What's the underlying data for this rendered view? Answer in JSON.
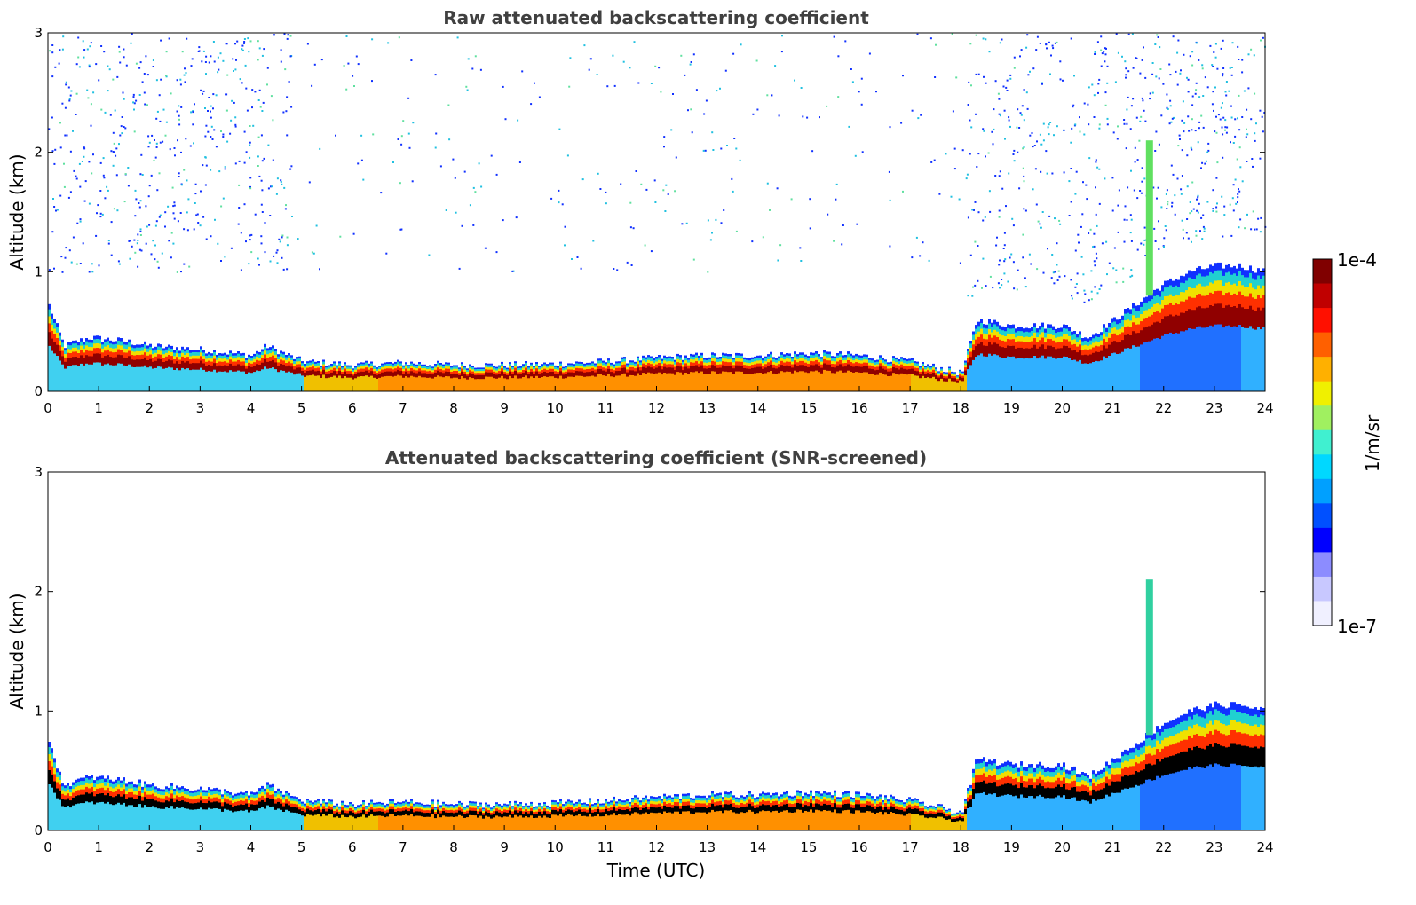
{
  "chart_data": [
    {
      "type": "heatmap",
      "title": "Raw attenuated backscattering coefficient",
      "xlabel": "",
      "ylabel": "Altitude (km)",
      "xlim": [
        0,
        24
      ],
      "ylim": [
        0,
        3
      ],
      "xticks": [
        "0",
        "1",
        "2",
        "3",
        "4",
        "5",
        "6",
        "7",
        "8",
        "9",
        "10",
        "11",
        "12",
        "13",
        "14",
        "15",
        "16",
        "17",
        "18",
        "19",
        "20",
        "21",
        "22",
        "23",
        "24"
      ],
      "yticks": [
        "0",
        "1",
        "2",
        "3"
      ],
      "screened": false,
      "boundary_layer_top_km": [
        [
          0,
          0.72
        ],
        [
          0.3,
          0.38
        ],
        [
          0.8,
          0.45
        ],
        [
          1.5,
          0.42
        ],
        [
          2,
          0.38
        ],
        [
          3,
          0.35
        ],
        [
          4,
          0.3
        ],
        [
          4.3,
          0.38
        ],
        [
          5,
          0.25
        ],
        [
          6,
          0.22
        ],
        [
          7,
          0.24
        ],
        [
          8,
          0.22
        ],
        [
          9,
          0.22
        ],
        [
          10,
          0.23
        ],
        [
          11,
          0.25
        ],
        [
          12,
          0.28
        ],
        [
          13,
          0.3
        ],
        [
          14,
          0.3
        ],
        [
          15,
          0.32
        ],
        [
          16,
          0.3
        ],
        [
          17,
          0.25
        ],
        [
          18,
          0.15
        ],
        [
          18.3,
          0.6
        ],
        [
          19,
          0.55
        ],
        [
          20,
          0.55
        ],
        [
          20.5,
          0.45
        ],
        [
          21,
          0.6
        ],
        [
          21.5,
          0.75
        ],
        [
          22,
          0.9
        ],
        [
          22.5,
          1.0
        ],
        [
          23,
          1.05
        ],
        [
          23.5,
          1.05
        ],
        [
          24,
          1.0
        ]
      ],
      "noise_gap_hours": [
        [
          4.8,
          18.1
        ]
      ],
      "colorbar": {
        "min": "1e-7",
        "max": "1e-4",
        "label": "1/m/sr"
      }
    },
    {
      "type": "heatmap",
      "title": "Attenuated backscattering coefficient (SNR-screened)",
      "xlabel": "Time (UTC)",
      "ylabel": "Altitude (km)",
      "xlim": [
        0,
        24
      ],
      "ylim": [
        0,
        3
      ],
      "xticks": [
        "0",
        "1",
        "2",
        "3",
        "4",
        "5",
        "6",
        "7",
        "8",
        "9",
        "10",
        "11",
        "12",
        "13",
        "14",
        "15",
        "16",
        "17",
        "18",
        "19",
        "20",
        "21",
        "22",
        "23",
        "24"
      ],
      "yticks": [
        "0",
        "1",
        "2",
        "3"
      ],
      "screened": true,
      "boundary_layer_top_km": [
        [
          0,
          0.72
        ],
        [
          0.3,
          0.38
        ],
        [
          0.8,
          0.45
        ],
        [
          1.5,
          0.42
        ],
        [
          2,
          0.38
        ],
        [
          3,
          0.35
        ],
        [
          4,
          0.3
        ],
        [
          4.3,
          0.38
        ],
        [
          5,
          0.25
        ],
        [
          6,
          0.22
        ],
        [
          7,
          0.24
        ],
        [
          8,
          0.22
        ],
        [
          9,
          0.22
        ],
        [
          10,
          0.23
        ],
        [
          11,
          0.25
        ],
        [
          12,
          0.28
        ],
        [
          13,
          0.3
        ],
        [
          14,
          0.3
        ],
        [
          15,
          0.32
        ],
        [
          16,
          0.3
        ],
        [
          17,
          0.25
        ],
        [
          18,
          0.15
        ],
        [
          18.3,
          0.6
        ],
        [
          19,
          0.55
        ],
        [
          20,
          0.55
        ],
        [
          20.5,
          0.45
        ],
        [
          21,
          0.6
        ],
        [
          21.5,
          0.75
        ],
        [
          22,
          0.9
        ],
        [
          22.5,
          1.0
        ],
        [
          23,
          1.05
        ],
        [
          23.5,
          1.05
        ],
        [
          24,
          1.0
        ]
      ],
      "colorbar": {
        "min": "1e-7",
        "max": "1e-4",
        "label": "1/m/sr"
      }
    }
  ],
  "colorbar": {
    "min_label": "1e-7",
    "max_label": "1e-4",
    "label": "1/m/sr",
    "colors": [
      "#f0f0ff",
      "#c8c8ff",
      "#8c8cff",
      "#0000ff",
      "#0050ff",
      "#00a0ff",
      "#00d8ff",
      "#40f0d0",
      "#a0f060",
      "#f0f000",
      "#ffb000",
      "#ff6000",
      "#ff1000",
      "#c00000",
      "#800000"
    ]
  }
}
